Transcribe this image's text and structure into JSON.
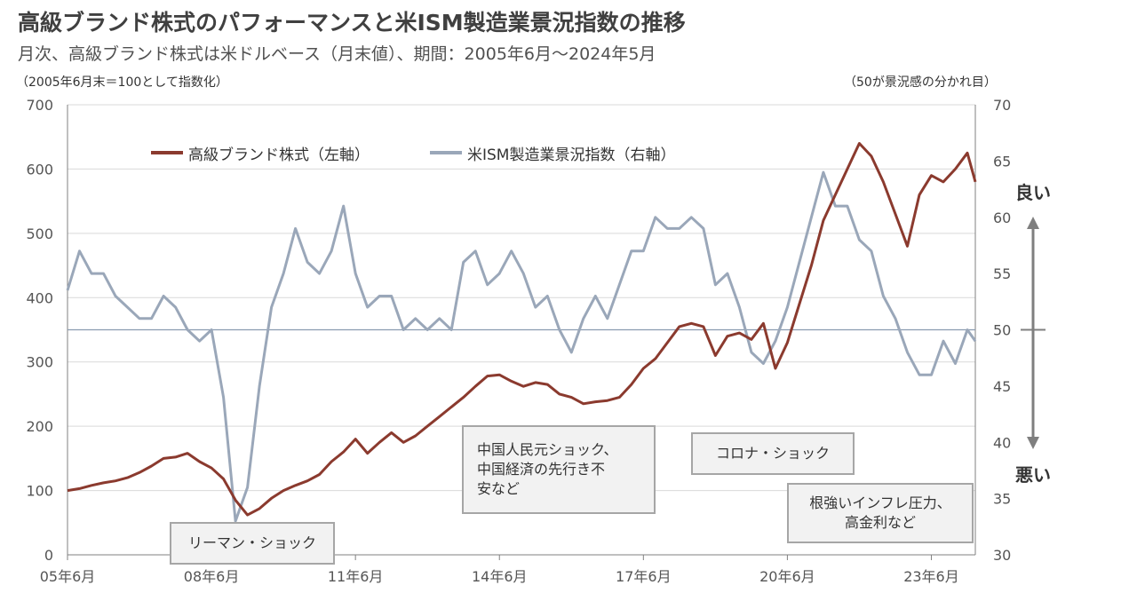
{
  "title": "高級ブランド株式のパフォーマンスと米ISM製造業景況指数の推移",
  "subtitle": "月次、高級ブランド株式は米ドルベース（月末値）、期間：2005年6月～2024年5月",
  "note_left": "（2005年6月末＝100として指数化）",
  "note_right": "（50が景況感の分かれ目）",
  "side_labels": {
    "good": "良い",
    "bad": "悪い"
  },
  "colors": {
    "luxury": "#8B3A2E",
    "ism": "#9AA7B9",
    "grid": "#D9D9D9",
    "axis": "#808080",
    "ref": "#8A9BB0"
  },
  "annotations": [
    {
      "name": "lehman",
      "text": [
        "リーマン・ショック"
      ]
    },
    {
      "name": "china",
      "text": [
        "中国人民元ショック、",
        "中国経済の先行き不",
        "安など"
      ]
    },
    {
      "name": "corona",
      "text": [
        "コロナ・ショック"
      ]
    },
    {
      "name": "inflation",
      "text": [
        "根強いインフレ圧力、",
        "高金利など"
      ]
    }
  ],
  "chart_data": {
    "type": "line",
    "x_ticks": [
      "05年6月",
      "08年6月",
      "11年6月",
      "14年6月",
      "17年6月",
      "20年6月",
      "23年6月"
    ],
    "y_left": {
      "ylim": [
        0,
        700
      ],
      "ticks": [
        0,
        100,
        200,
        300,
        400,
        500,
        600,
        700
      ]
    },
    "y_right": {
      "ylim": [
        30,
        70
      ],
      "ticks": [
        30,
        35,
        40,
        45,
        50,
        55,
        60,
        65,
        70
      ]
    },
    "reference_line": {
      "axis": "right",
      "value": 50
    },
    "series": [
      {
        "name": "高級ブランド株式（左軸）",
        "axis": "left",
        "points": [
          [
            "2005-06",
            100
          ],
          [
            "2005-09",
            103
          ],
          [
            "2005-12",
            108
          ],
          [
            "2006-03",
            112
          ],
          [
            "2006-06",
            115
          ],
          [
            "2006-09",
            120
          ],
          [
            "2006-12",
            128
          ],
          [
            "2007-03",
            138
          ],
          [
            "2007-06",
            150
          ],
          [
            "2007-09",
            152
          ],
          [
            "2007-12",
            158
          ],
          [
            "2008-03",
            145
          ],
          [
            "2008-06",
            135
          ],
          [
            "2008-09",
            118
          ],
          [
            "2008-12",
            85
          ],
          [
            "2009-03",
            62
          ],
          [
            "2009-06",
            72
          ],
          [
            "2009-09",
            88
          ],
          [
            "2009-12",
            100
          ],
          [
            "2010-03",
            108
          ],
          [
            "2010-06",
            115
          ],
          [
            "2010-09",
            125
          ],
          [
            "2010-12",
            145
          ],
          [
            "2011-03",
            160
          ],
          [
            "2011-06",
            180
          ],
          [
            "2011-09",
            158
          ],
          [
            "2011-12",
            175
          ],
          [
            "2012-03",
            190
          ],
          [
            "2012-06",
            175
          ],
          [
            "2012-09",
            185
          ],
          [
            "2012-12",
            200
          ],
          [
            "2013-03",
            215
          ],
          [
            "2013-06",
            230
          ],
          [
            "2013-09",
            245
          ],
          [
            "2013-12",
            262
          ],
          [
            "2014-03",
            278
          ],
          [
            "2014-06",
            280
          ],
          [
            "2014-09",
            270
          ],
          [
            "2014-12",
            262
          ],
          [
            "2015-03",
            268
          ],
          [
            "2015-06",
            265
          ],
          [
            "2015-09",
            250
          ],
          [
            "2015-12",
            245
          ],
          [
            "2016-03",
            235
          ],
          [
            "2016-06",
            238
          ],
          [
            "2016-09",
            240
          ],
          [
            "2016-12",
            245
          ],
          [
            "2017-03",
            265
          ],
          [
            "2017-06",
            290
          ],
          [
            "2017-09",
            305
          ],
          [
            "2017-12",
            330
          ],
          [
            "2018-03",
            355
          ],
          [
            "2018-06",
            360
          ],
          [
            "2018-09",
            355
          ],
          [
            "2018-12",
            310
          ],
          [
            "2019-03",
            340
          ],
          [
            "2019-06",
            345
          ],
          [
            "2019-09",
            335
          ],
          [
            "2019-12",
            360
          ],
          [
            "2020-03",
            290
          ],
          [
            "2020-06",
            330
          ],
          [
            "2020-09",
            390
          ],
          [
            "2020-12",
            450
          ],
          [
            "2021-03",
            520
          ],
          [
            "2021-06",
            560
          ],
          [
            "2021-09",
            600
          ],
          [
            "2021-12",
            640
          ],
          [
            "2022-03",
            620
          ],
          [
            "2022-06",
            580
          ],
          [
            "2022-09",
            530
          ],
          [
            "2022-12",
            480
          ],
          [
            "2023-03",
            560
          ],
          [
            "2023-06",
            590
          ],
          [
            "2023-09",
            580
          ],
          [
            "2023-12",
            600
          ],
          [
            "2024-03",
            625
          ],
          [
            "2024-05",
            580
          ]
        ]
      },
      {
        "name": "米ISM製造業景況指数（右軸）",
        "axis": "right",
        "points": [
          [
            "2005-06",
            53.5
          ],
          [
            "2005-09",
            57
          ],
          [
            "2005-12",
            55
          ],
          [
            "2006-03",
            55
          ],
          [
            "2006-06",
            53
          ],
          [
            "2006-09",
            52
          ],
          [
            "2006-12",
            51
          ],
          [
            "2007-03",
            51
          ],
          [
            "2007-06",
            53
          ],
          [
            "2007-09",
            52
          ],
          [
            "2007-12",
            50
          ],
          [
            "2008-03",
            49
          ],
          [
            "2008-06",
            50
          ],
          [
            "2008-09",
            44
          ],
          [
            "2008-12",
            33
          ],
          [
            "2009-03",
            36
          ],
          [
            "2009-06",
            45
          ],
          [
            "2009-09",
            52
          ],
          [
            "2009-12",
            55
          ],
          [
            "2010-03",
            59
          ],
          [
            "2010-06",
            56
          ],
          [
            "2010-09",
            55
          ],
          [
            "2010-12",
            57
          ],
          [
            "2011-03",
            61
          ],
          [
            "2011-06",
            55
          ],
          [
            "2011-09",
            52
          ],
          [
            "2011-12",
            53
          ],
          [
            "2012-03",
            53
          ],
          [
            "2012-06",
            50
          ],
          [
            "2012-09",
            51
          ],
          [
            "2012-12",
            50
          ],
          [
            "2013-03",
            51
          ],
          [
            "2013-06",
            50
          ],
          [
            "2013-09",
            56
          ],
          [
            "2013-12",
            57
          ],
          [
            "2014-03",
            54
          ],
          [
            "2014-06",
            55
          ],
          [
            "2014-09",
            57
          ],
          [
            "2014-12",
            55
          ],
          [
            "2015-03",
            52
          ],
          [
            "2015-06",
            53
          ],
          [
            "2015-09",
            50
          ],
          [
            "2015-12",
            48
          ],
          [
            "2016-03",
            51
          ],
          [
            "2016-06",
            53
          ],
          [
            "2016-09",
            51
          ],
          [
            "2016-12",
            54
          ],
          [
            "2017-03",
            57
          ],
          [
            "2017-06",
            57
          ],
          [
            "2017-09",
            60
          ],
          [
            "2017-12",
            59
          ],
          [
            "2018-03",
            59
          ],
          [
            "2018-06",
            60
          ],
          [
            "2018-09",
            59
          ],
          [
            "2018-12",
            54
          ],
          [
            "2019-03",
            55
          ],
          [
            "2019-06",
            52
          ],
          [
            "2019-09",
            48
          ],
          [
            "2019-12",
            47
          ],
          [
            "2020-03",
            49
          ],
          [
            "2020-06",
            52
          ],
          [
            "2020-09",
            56
          ],
          [
            "2020-12",
            60
          ],
          [
            "2021-03",
            64
          ],
          [
            "2021-06",
            61
          ],
          [
            "2021-09",
            61
          ],
          [
            "2021-12",
            58
          ],
          [
            "2022-03",
            57
          ],
          [
            "2022-06",
            53
          ],
          [
            "2022-09",
            51
          ],
          [
            "2022-12",
            48
          ],
          [
            "2023-03",
            46
          ],
          [
            "2023-06",
            46
          ],
          [
            "2023-09",
            49
          ],
          [
            "2023-12",
            47
          ],
          [
            "2024-03",
            50
          ],
          [
            "2024-05",
            49
          ]
        ]
      }
    ]
  }
}
